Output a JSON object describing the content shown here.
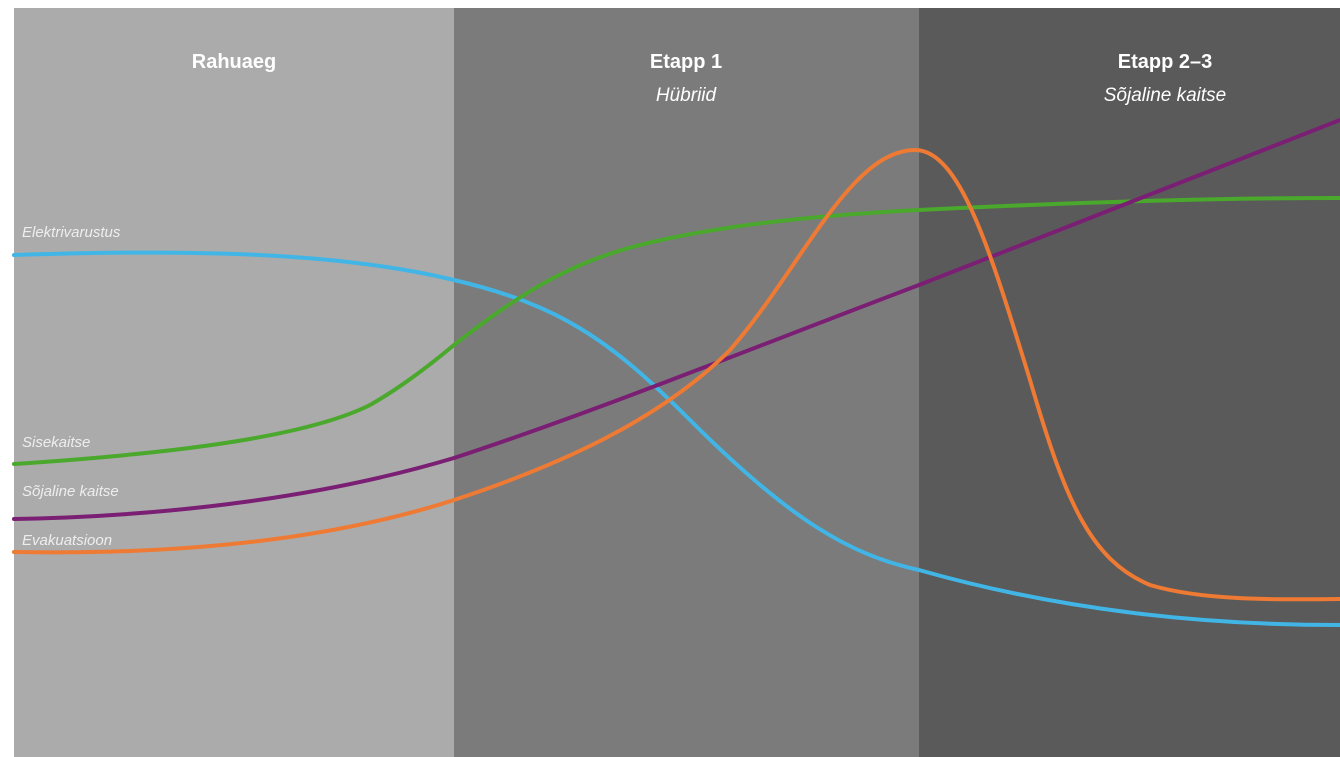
{
  "chart_data": {
    "type": "line",
    "title": "",
    "xlabel": "",
    "ylabel": "",
    "phases": [
      {
        "title": "Rahuaeg",
        "subtitle": "",
        "color": "#ababab"
      },
      {
        "title": "Etapp 1",
        "subtitle": "Hübriid",
        "color": "#7b7b7b"
      },
      {
        "title": "Etapp 2–3",
        "subtitle": "Sõjaline kaitse",
        "color": "#5a5a5a"
      }
    ],
    "series": [
      {
        "name": "Elektrivarustus",
        "color": "#41b6e6",
        "shape": "decreasing-sigmoid"
      },
      {
        "name": "Sisekaitse",
        "color": "#4aa82c",
        "shape": "increasing-sigmoid"
      },
      {
        "name": "Sõjaline kaitse",
        "color": "#7a1f73",
        "shape": "steady-increase"
      },
      {
        "name": "Evakuatsioon",
        "color": "#ee7a33",
        "shape": "peak-then-drop"
      }
    ],
    "grid": false,
    "axes": false
  }
}
